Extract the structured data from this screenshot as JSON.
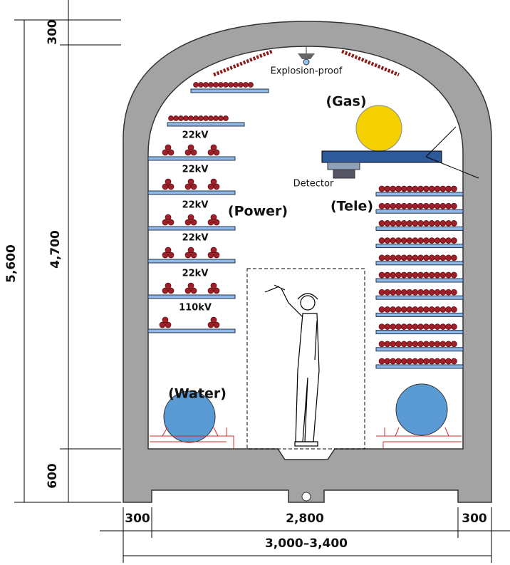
{
  "dimensions": {
    "left": [
      "300",
      "5,600",
      "4,700",
      "600"
    ],
    "bottom": [
      "300",
      "2,800",
      "300",
      "3,000–3,400"
    ]
  },
  "labels": {
    "explosion_proof": "Explosion-proof",
    "gas": "(Gas)",
    "detector": "Detector",
    "tele": "(Tele)",
    "power": "(Power)",
    "water": "(Water)"
  },
  "voltages": [
    "22kV",
    "22kV",
    "22kV",
    "22kV",
    "22kV",
    "110kV"
  ]
}
